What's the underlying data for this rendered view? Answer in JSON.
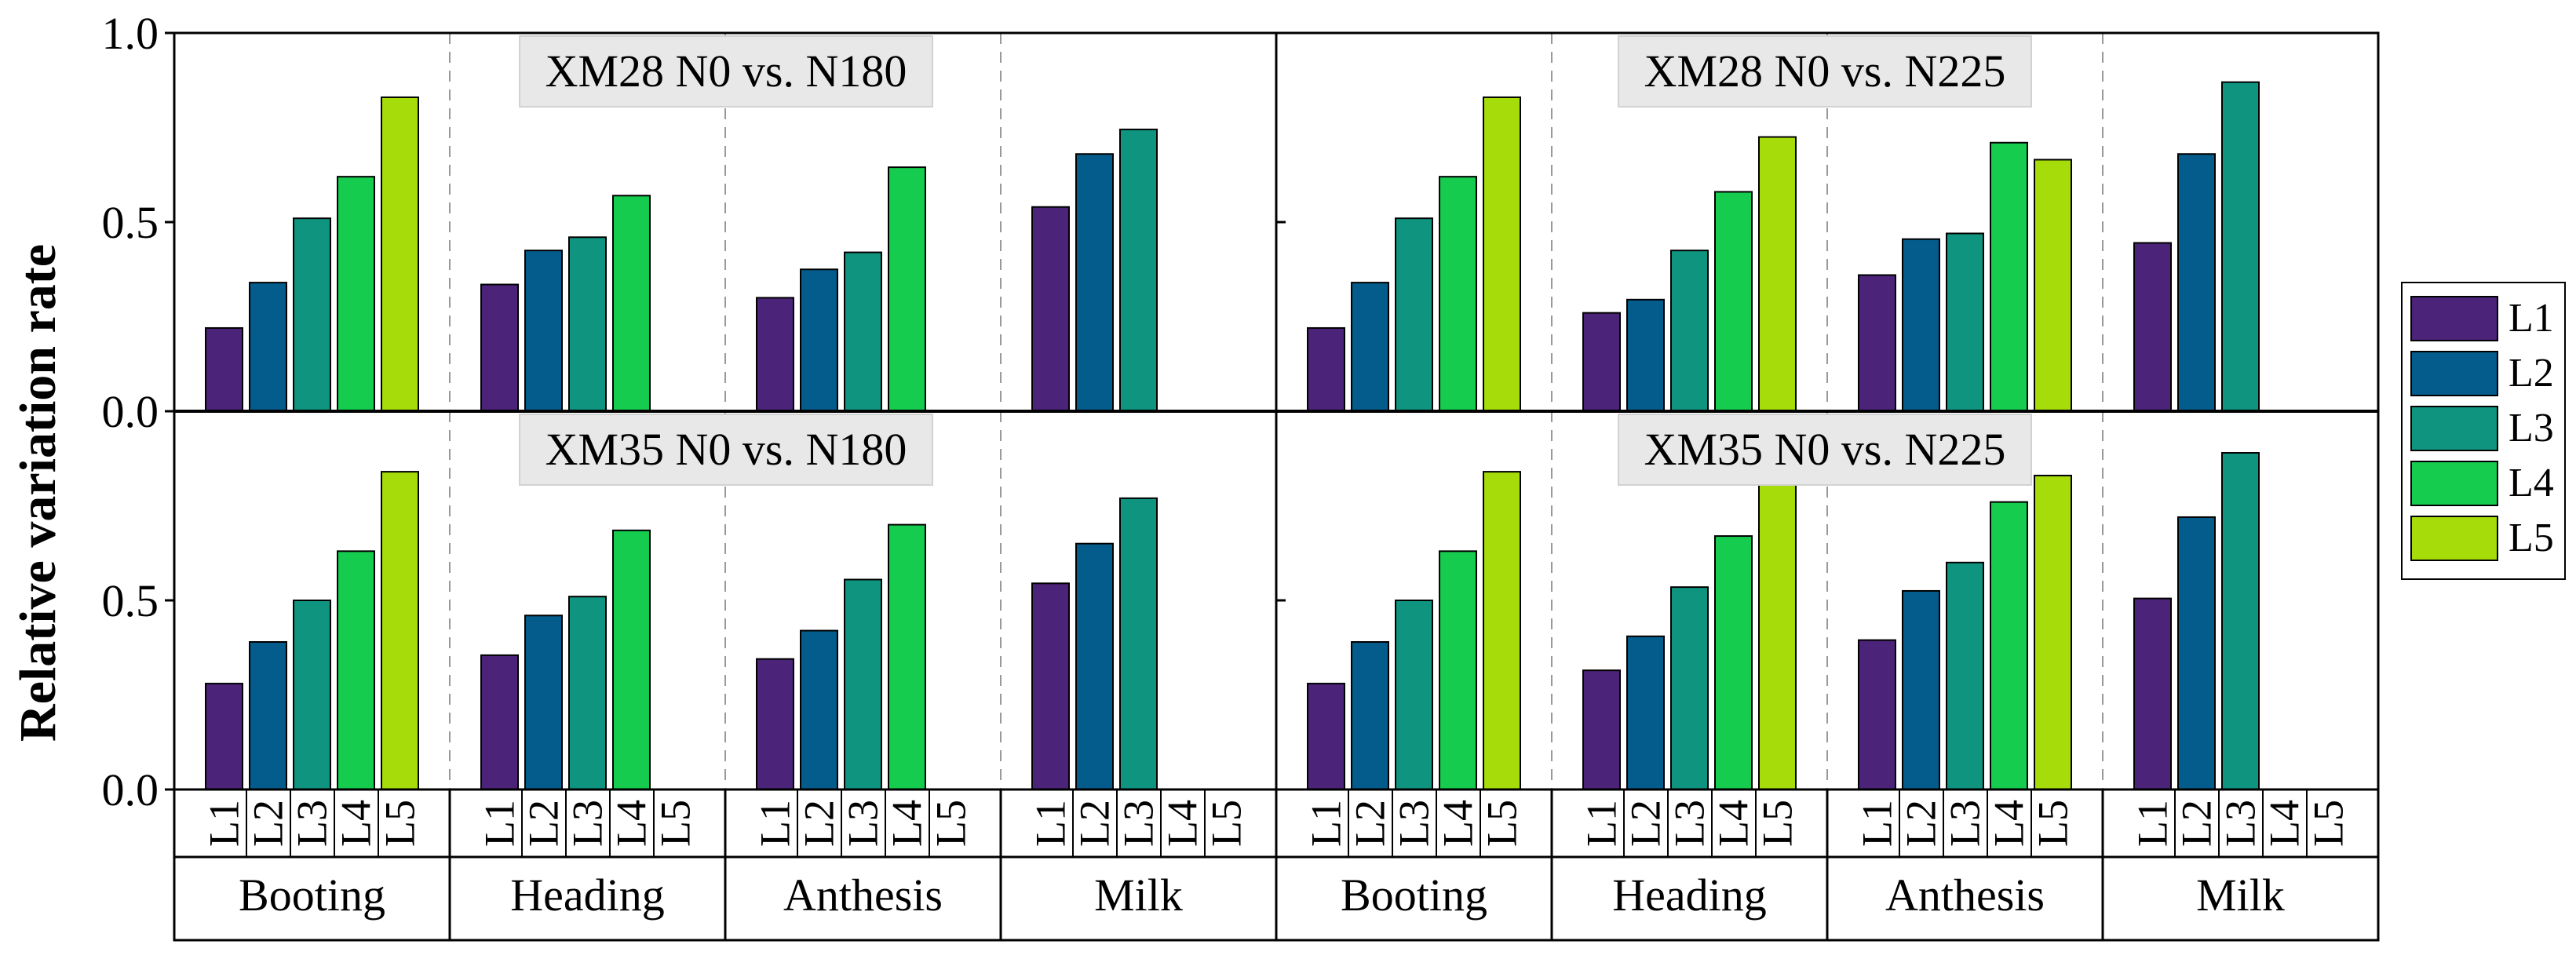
{
  "chart_data": {
    "type": "bar",
    "ylabel": "Relative variation rate",
    "yticks": [
      "0.0",
      "0.5",
      "1.0"
    ],
    "ylim": [
      0,
      1.0
    ],
    "stages": [
      "Booting",
      "Heading",
      "Anthesis",
      "Milk"
    ],
    "leaves": [
      "L1",
      "L2",
      "L3",
      "L4",
      "L5"
    ],
    "colors": {
      "L1": "#4b2378",
      "L2": "#045c8c",
      "L3": "#0f9480",
      "L4": "#16cc4e",
      "L5": "#a6dc0a"
    },
    "legend_position": "right",
    "panels": [
      {
        "title": "XM28 N0 vs. N180",
        "values": [
          [
            0.22,
            0.34,
            0.51,
            0.62,
            0.83
          ],
          [
            0.335,
            0.425,
            0.46,
            0.57,
            null
          ],
          [
            0.3,
            0.375,
            0.42,
            0.645,
            null
          ],
          [
            0.54,
            0.68,
            0.745,
            null,
            null
          ]
        ]
      },
      {
        "title": "XM28 N0 vs. N225",
        "values": [
          [
            0.22,
            0.34,
            0.51,
            0.62,
            0.83
          ],
          [
            0.26,
            0.295,
            0.425,
            0.58,
            0.725
          ],
          [
            0.36,
            0.455,
            0.47,
            0.71,
            0.665
          ],
          [
            0.445,
            0.68,
            0.87,
            null,
            null
          ]
        ]
      },
      {
        "title": "XM35 N0 vs. N180",
        "values": [
          [
            0.28,
            0.39,
            0.5,
            0.63,
            0.84
          ],
          [
            0.355,
            0.46,
            0.51,
            0.685,
            null
          ],
          [
            0.345,
            0.42,
            0.555,
            0.7,
            null
          ],
          [
            0.545,
            0.65,
            0.77,
            null,
            null
          ]
        ]
      },
      {
        "title": "XM35 N0 vs. N225",
        "values": [
          [
            0.28,
            0.39,
            0.5,
            0.63,
            0.84
          ],
          [
            0.315,
            0.405,
            0.535,
            0.67,
            0.83
          ],
          [
            0.395,
            0.525,
            0.6,
            0.76,
            0.83
          ],
          [
            0.505,
            0.72,
            0.89,
            null,
            null
          ]
        ]
      }
    ]
  }
}
